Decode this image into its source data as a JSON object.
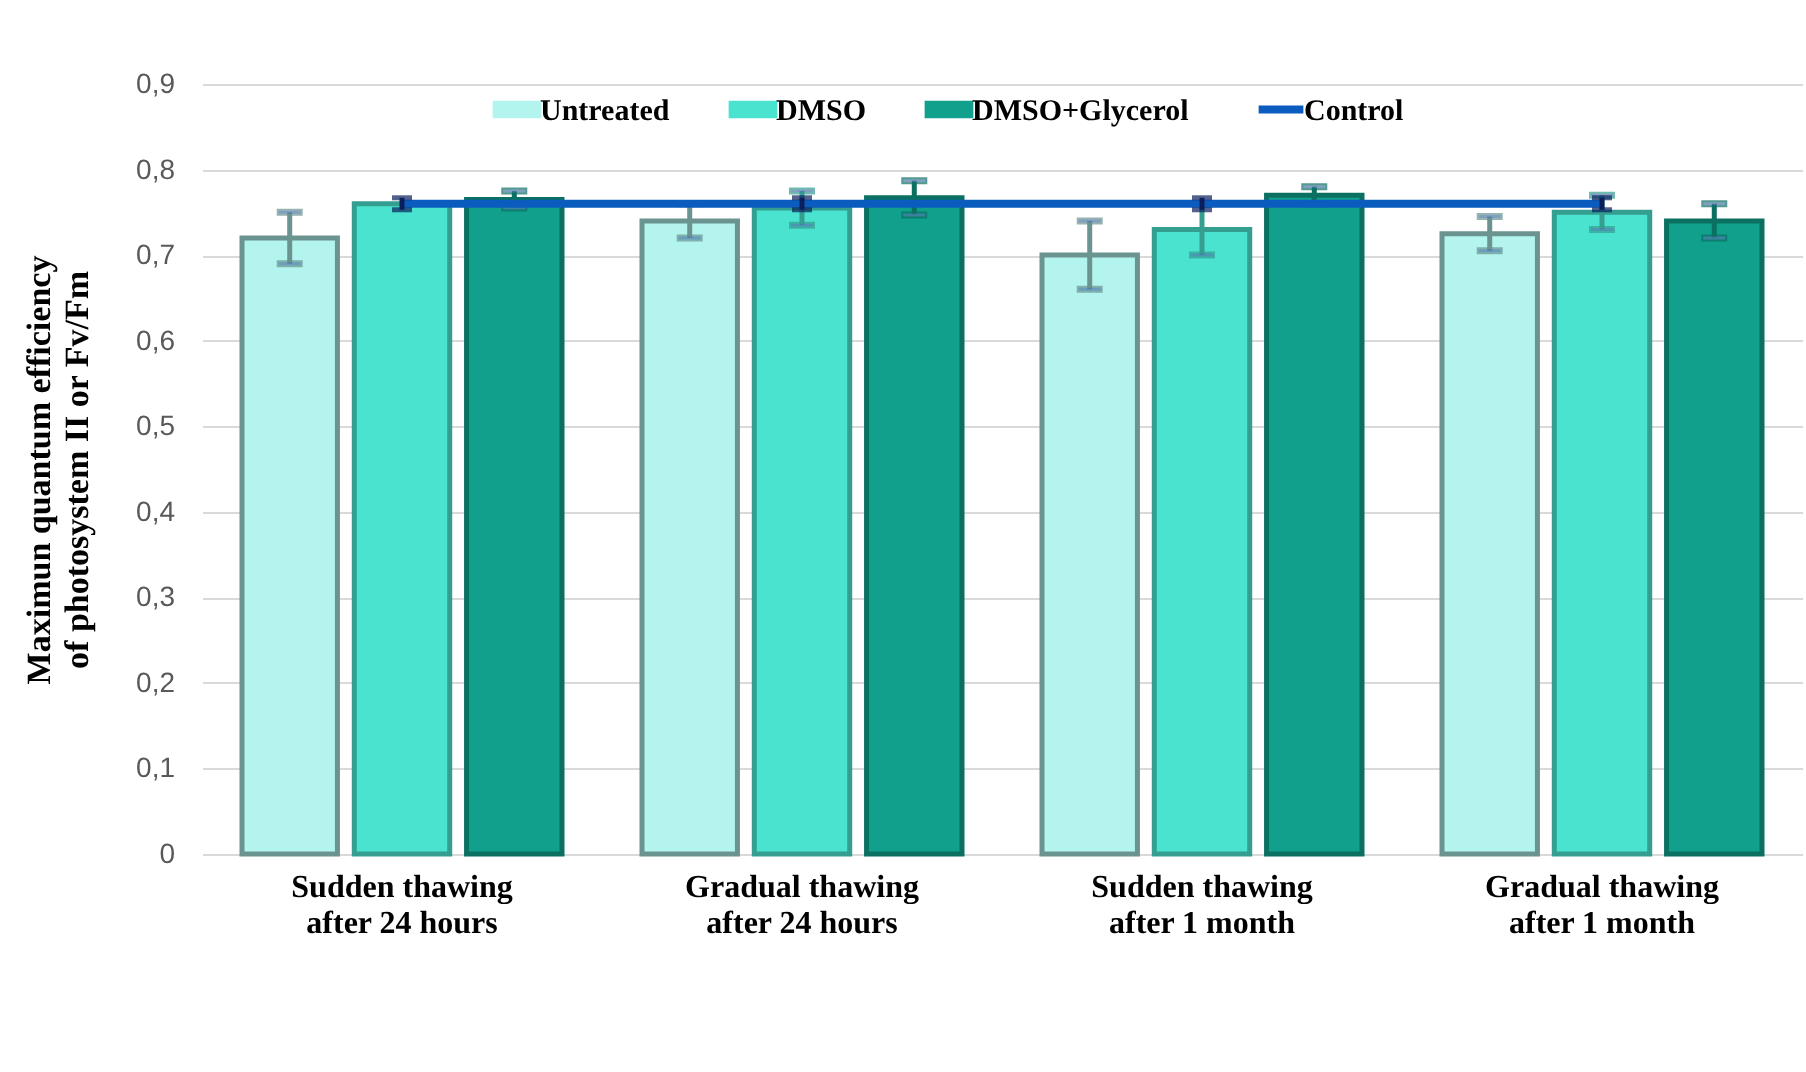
{
  "chart_data": {
    "type": "bar",
    "ylabel": "Maximun quantum efficiency of photosystem II or Fv/Fm",
    "categories": [
      "Sudden thawing after 24 hours",
      "Gradual thawing after 24 hours",
      "Sudden thawing after 1 month",
      "Gradual thawing after 1 month"
    ],
    "series": [
      {
        "name": "Untreated",
        "color": "#b3f5ee",
        "values": [
          0.72,
          0.74,
          0.7,
          0.725
        ],
        "errors": [
          0.03,
          0.02,
          0.04,
          0.02
        ]
      },
      {
        "name": "DMSO",
        "color": "#4ae3cf",
        "values": [
          0.76,
          0.755,
          0.73,
          0.75
        ],
        "errors": [
          null,
          0.02,
          0.03,
          0.02
        ]
      },
      {
        "name": "DMSO+Glycerol",
        "color": "#10a08c",
        "values": [
          0.765,
          0.767,
          0.77,
          0.74
        ],
        "errors": [
          0.01,
          0.02,
          0.01,
          0.02
        ]
      },
      {
        "name": "Control",
        "type": "line",
        "color": "#0b5cbf",
        "values": [
          0.76,
          0.76,
          0.76,
          0.76
        ],
        "errors": [
          0.007,
          0.007,
          0.007,
          0.007
        ]
      }
    ],
    "ylim": [
      0,
      0.9
    ],
    "yticks": [
      {
        "value": 0,
        "label": "0"
      },
      {
        "value": 0.1,
        "label": "0,1"
      },
      {
        "value": 0.2,
        "label": "0,2"
      },
      {
        "value": 0.3,
        "label": "0,3"
      },
      {
        "value": 0.4,
        "label": "0,4"
      },
      {
        "value": 0.5,
        "label": "0,5"
      },
      {
        "value": 0.6,
        "label": "0,6"
      },
      {
        "value": 0.7,
        "label": "0,7"
      },
      {
        "value": 0.8,
        "label": "0,8"
      },
      {
        "value": 0.9,
        "label": "0,9"
      }
    ],
    "grid": "y",
    "legend": "top"
  }
}
